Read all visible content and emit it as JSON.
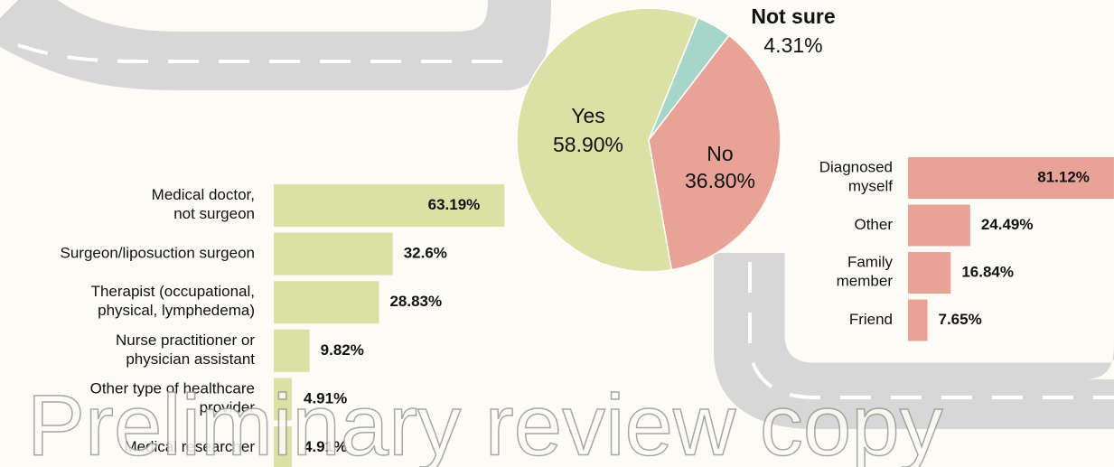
{
  "watermark": "Preliminary review copy",
  "chart_data": [
    {
      "type": "pie",
      "categories": [
        "Yes",
        "Not sure",
        "No"
      ],
      "values": [
        58.9,
        4.31,
        36.8
      ],
      "value_labels": [
        "58.90%",
        "4.31%",
        "36.80%"
      ],
      "colors": [
        "#dbe0a4",
        "#a7d5ca",
        "#e9a396"
      ]
    },
    {
      "type": "hbar",
      "categories": [
        "Medical doctor,\nnot surgeon",
        "Surgeon/liposuction surgeon",
        "Therapist (occupational,\nphysical, lymphedema)",
        "Nurse practitioner or\nphysician assistant",
        "Other type of healthcare\nprovider",
        "Medical researcher"
      ],
      "values": [
        63.19,
        32.6,
        28.83,
        9.82,
        4.91,
        4.91
      ],
      "value_labels": [
        "63.19%",
        "32.6%",
        "28.83%",
        "9.82%",
        "4.91%",
        "4.91%"
      ],
      "color": "#dbe0a4"
    },
    {
      "type": "hbar",
      "categories": [
        "Diagnosed\nmyself",
        "Other",
        "Family\nmember",
        "Friend"
      ],
      "values": [
        81.12,
        24.49,
        16.84,
        7.65
      ],
      "value_labels": [
        "81.12%",
        "24.49%",
        "16.84%",
        "7.65%"
      ],
      "color": "#e9a396"
    }
  ]
}
